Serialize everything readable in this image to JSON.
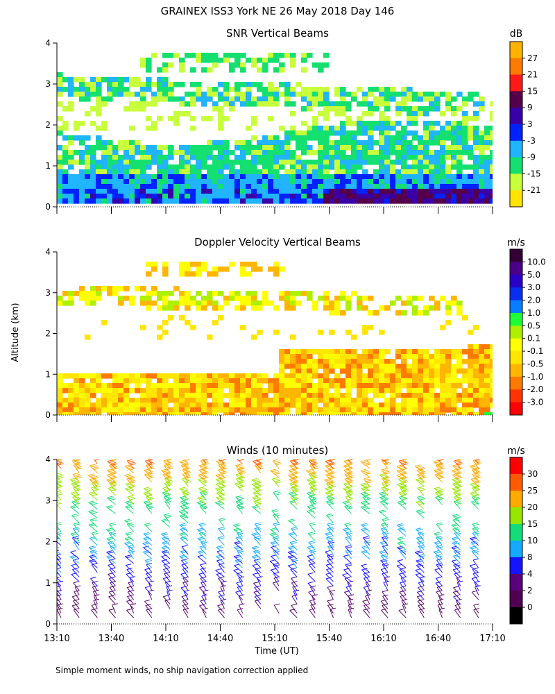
{
  "title": "GRAINEX ISS3 York NE  26 May 2018 Day 146",
  "shared_axes": {
    "ylabel": "Altitude (km)",
    "xlabel": "Time (UT)",
    "ylim": [
      0,
      4
    ],
    "yticks": [
      "0",
      "1",
      "2",
      "3",
      "4"
    ],
    "xticks": [
      "13:10",
      "13:40",
      "14:10",
      "14:40",
      "15:10",
      "15:40",
      "16:10",
      "16:40",
      "17:10"
    ]
  },
  "footnote": "Simple moment winds, no ship navigation correction applied",
  "chart_data": [
    {
      "type": "heatmap",
      "title": "SNR Vertical Beams",
      "unit": "dB",
      "colorbar": {
        "labels": [
          "27",
          "21",
          "15",
          "9",
          "3",
          "-3",
          "-9",
          "-15",
          "-21"
        ],
        "colors": [
          "#ffb300",
          "#ff7a00",
          "#ff1a1a",
          "#55004a",
          "#3a00a8",
          "#0022ff",
          "#21b4ff",
          "#14e070",
          "#c8ff3c",
          "#ffe400"
        ]
      },
      "layers": [
        {
          "alt": [
            0.05,
            0.5
          ],
          "t": [
            "13:10",
            "17:00"
          ],
          "value_dB": "-9 to 3"
        },
        {
          "alt": [
            0.5,
            0.9
          ],
          "t": [
            "13:10",
            "16:30"
          ],
          "value_dB": "-9 to -3"
        },
        {
          "alt": [
            0.9,
            1.9
          ],
          "t": [
            "13:10",
            "17:10"
          ],
          "value_dB": "-21 to -9"
        },
        {
          "alt": [
            2.6,
            3.2
          ],
          "t": [
            "13:10",
            "16:50"
          ],
          "value_dB": "-21 to -9"
        },
        {
          "alt": [
            3.3,
            3.9
          ],
          "t": [
            "13:50",
            "15:40"
          ],
          "value_dB": "-21 to -15"
        }
      ]
    },
    {
      "type": "heatmap",
      "title": "Doppler Velocity Vertical Beams",
      "unit": "m/s",
      "colorbar": {
        "labels": [
          "10.0",
          "5.0",
          "3.0",
          "2.0",
          "1.0",
          "0.5",
          "0.1",
          "-0.1",
          "-0.5",
          "-1.0",
          "-2.0",
          "-3.0"
        ],
        "colors": [
          "#330033",
          "#4c0088",
          "#2a00c8",
          "#0a2ef0",
          "#0a7cff",
          "#1eff3a",
          "#aef000",
          "#ffff00",
          "#ffe600",
          "#ffb600",
          "#ff7a00",
          "#ff3300",
          "#ff0000"
        ]
      },
      "layers": [
        {
          "alt": [
            0.05,
            1.9
          ],
          "t": [
            "13:10",
            "17:10"
          ],
          "value_ms": "-0.5 to 0.1"
        },
        {
          "alt": [
            2.5,
            3.2
          ],
          "t": [
            "13:10",
            "16:40"
          ],
          "value_ms": "-0.1 to 0.1"
        },
        {
          "alt": [
            3.5,
            3.9
          ],
          "t": [
            "14:00",
            "15:10"
          ],
          "value_ms": "-0.1 to 0.1"
        }
      ]
    },
    {
      "type": "wind_barbs",
      "title": "Winds (10 minutes)",
      "unit": "m/s",
      "colorbar": {
        "labels": [
          "30",
          "25",
          "20",
          "15",
          "10",
          "8",
          "4",
          "2",
          "0"
        ],
        "colors": [
          "#ff0000",
          "#ff5a00",
          "#ffaa00",
          "#96e600",
          "#14dc78",
          "#14aaff",
          "#1414ff",
          "#5a0078",
          "#500050",
          "#000000"
        ]
      },
      "profile_interval_min": 10,
      "times": [
        "13:10",
        "17:10"
      ],
      "speed_by_altitude_ms": [
        {
          "alt_km": 0.2,
          "speed": 2
        },
        {
          "alt_km": 0.8,
          "speed": 4
        },
        {
          "alt_km": 1.5,
          "speed": 8
        },
        {
          "alt_km": 2.2,
          "speed": 10
        },
        {
          "alt_km": 3.0,
          "speed": 15
        },
        {
          "alt_km": 3.8,
          "speed": 25
        }
      ]
    }
  ]
}
